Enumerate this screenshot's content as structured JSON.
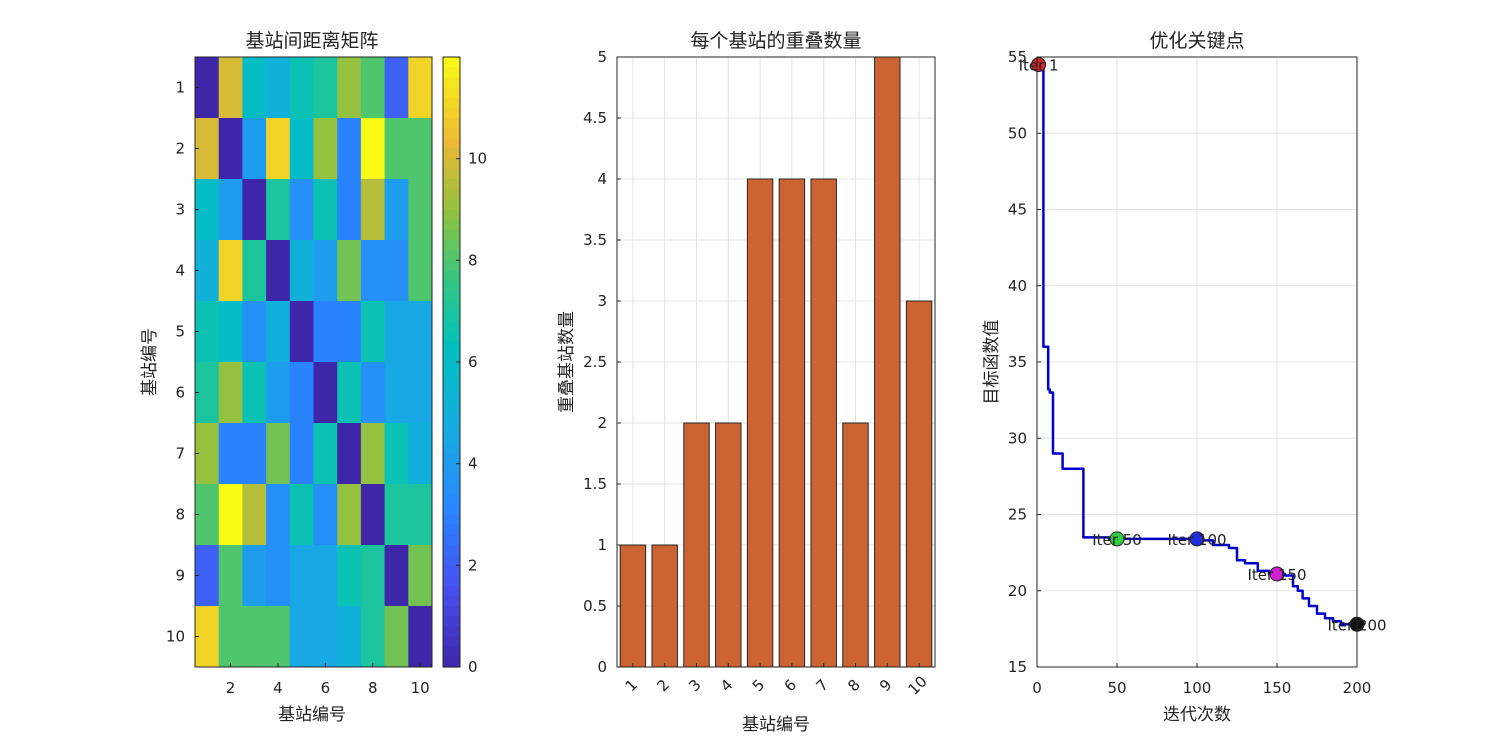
{
  "chart_data": [
    {
      "type": "heatmap",
      "title": "基站间距离矩阵",
      "xlabel": "基站编号",
      "ylabel": "基站编号",
      "x_tick_labels": [
        "2",
        "4",
        "6",
        "8",
        "10"
      ],
      "y_tick_labels": [
        "1",
        "2",
        "3",
        "4",
        "5",
        "6",
        "7",
        "8",
        "9",
        "10"
      ],
      "colorbar_range": [
        0,
        12
      ],
      "colorbar_tick_labels": [
        "0",
        "2",
        "4",
        "6",
        "8",
        "10"
      ],
      "matrix": [
        [
          0,
          10,
          6,
          5,
          6.5,
          7,
          9,
          8,
          2,
          11
        ],
        [
          10,
          0,
          4,
          11,
          6,
          9,
          3,
          12,
          8,
          8
        ],
        [
          6,
          4,
          0,
          7,
          3.5,
          6.5,
          3,
          9.5,
          4,
          8
        ],
        [
          5,
          11,
          7,
          0,
          5,
          4,
          8.5,
          3.5,
          3.5,
          8
        ],
        [
          6.5,
          6,
          3.5,
          5,
          0,
          3,
          3,
          6.5,
          4.5,
          4.5
        ],
        [
          7,
          9,
          6.5,
          4,
          3,
          0,
          6.5,
          3.5,
          4.5,
          4.5
        ],
        [
          9,
          3,
          3,
          8.5,
          3,
          6.5,
          0,
          9,
          6.5,
          5
        ],
        [
          8,
          12,
          9.5,
          3.5,
          6.5,
          3.5,
          9,
          0,
          7,
          7
        ],
        [
          2,
          8,
          4,
          3.5,
          4.5,
          4.5,
          6.5,
          7,
          0,
          8.5
        ],
        [
          11,
          8,
          8,
          8,
          4.5,
          4.5,
          5,
          7,
          8.5,
          0
        ]
      ]
    },
    {
      "type": "bar",
      "title": "每个基站的重叠数量",
      "xlabel": "基站编号",
      "ylabel": "重叠基站数量",
      "categories": [
        "1",
        "2",
        "3",
        "4",
        "5",
        "6",
        "7",
        "8",
        "9",
        "10"
      ],
      "values": [
        1,
        1,
        2,
        2,
        4,
        4,
        4,
        2,
        5,
        3
      ],
      "ylim": [
        0,
        5
      ],
      "y_tick_labels": [
        "0",
        "0.5",
        "1",
        "1.5",
        "2",
        "2.5",
        "3",
        "3.5",
        "4",
        "4.5",
        "5"
      ],
      "color": "#cd6332",
      "grid": true
    },
    {
      "type": "line",
      "title": "优化关键点",
      "xlabel": "迭代次数",
      "ylabel": "目标函数值",
      "xlim": [
        0,
        200
      ],
      "ylim": [
        15,
        55
      ],
      "x_tick_labels": [
        "0",
        "50",
        "100",
        "150",
        "200"
      ],
      "y_tick_labels": [
        "15",
        "20",
        "25",
        "30",
        "35",
        "40",
        "45",
        "50",
        "55"
      ],
      "grid": true,
      "line_color": "#0000c8",
      "series": [
        {
          "name": "目标函数值",
          "x": [
            1,
            4,
            4,
            7,
            7,
            8,
            8,
            10,
            10,
            16,
            16,
            29,
            29,
            45,
            45,
            100,
            100,
            110,
            110,
            120,
            120,
            125,
            125,
            130,
            130,
            138,
            138,
            145,
            145,
            155,
            155,
            160,
            160,
            163,
            163,
            166,
            166,
            170,
            170,
            175,
            175,
            180,
            180,
            185,
            185,
            190,
            190,
            200
          ],
          "y": [
            54.5,
            54.5,
            36,
            36,
            33.2,
            33.2,
            33,
            33,
            29,
            29,
            28,
            28,
            23.5,
            23.5,
            23.4,
            23.4,
            23.3,
            23.3,
            23,
            23,
            22.8,
            22.8,
            22,
            22,
            21.8,
            21.8,
            21.3,
            21.3,
            21.1,
            21.1,
            21,
            21,
            20.3,
            20.3,
            20,
            20,
            19.5,
            19.5,
            19,
            19,
            18.5,
            18.5,
            18.2,
            18.2,
            18,
            18,
            17.8,
            17.8
          ]
        }
      ],
      "annotations": [
        {
          "label": "Iter 1",
          "x": 1,
          "y": 54.5,
          "color": "#d62728"
        },
        {
          "label": "Iter 50",
          "x": 50,
          "y": 23.4,
          "color": "#2ecc40"
        },
        {
          "label": "Iter 100",
          "x": 100,
          "y": 23.4,
          "color": "#1f2ddb"
        },
        {
          "label": "Iter 150",
          "x": 150,
          "y": 21.1,
          "color": "#d21fd2"
        },
        {
          "label": "Iter 200",
          "x": 200,
          "y": 17.8,
          "color": "#111111"
        }
      ]
    }
  ]
}
